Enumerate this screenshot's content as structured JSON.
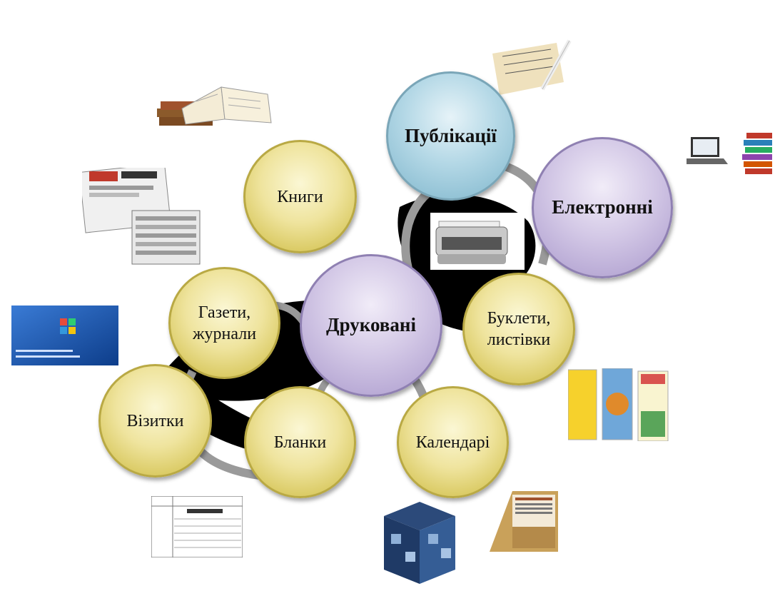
{
  "nodes": {
    "center": "Друковані",
    "publications": "Публікації",
    "electronic": "Електронні",
    "books": "Книги",
    "newspapers": "Газети,\nжурнали",
    "booklets": "Буклети,\nлистівки",
    "business_cards": "Візитки",
    "forms": "Бланки",
    "calendars": "Календарі"
  },
  "images": {
    "book": "open-book-image",
    "newspaper": "newspaper-stack-image",
    "business_card": "business-card-image",
    "telegram_form": "telegram-form-image",
    "cube_calendar": "cube-calendar-image",
    "desk_calendar": "desk-calendar-image",
    "bookmarks": "bookmarks-image",
    "typewriter": "typewriter-image",
    "manuscript": "manuscript-quill-image",
    "laptop_books": "laptop-books-image"
  },
  "colors": {
    "yellow": "#efe49e",
    "blue": "#b4d8e6",
    "purple": "#d3c8e6",
    "ring": "#9a9a9a",
    "fill": "#000000"
  }
}
